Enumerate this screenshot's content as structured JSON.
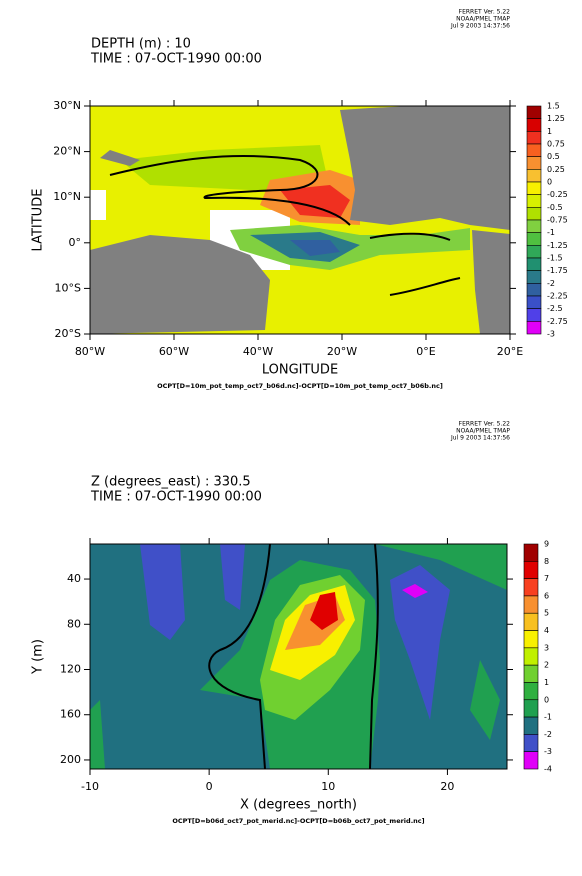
{
  "chart_data": [
    {
      "type": "contour",
      "header": [
        "FERRET Ver. 5.22",
        "NOAA/PMEL TMAP",
        "Jul  9 2003 14:37:56"
      ],
      "title": [
        "DEPTH (m) : 10",
        "TIME : 07-OCT-1990 00:00"
      ],
      "xlabel": "LONGITUDE",
      "ylabel": "LATITUDE",
      "footer": "OCPT[D=10m_pot_temp_oct7_b06d.nc]-OCPT[D=10m_pot_temp_oct7_b06b.nc]",
      "xlim": [
        -80,
        20
      ],
      "xticks": [
        {
          "value": -80,
          "label": "80°W"
        },
        {
          "value": -60,
          "label": "60°W"
        },
        {
          "value": -40,
          "label": "40°W"
        },
        {
          "value": -20,
          "label": "20°W"
        },
        {
          "value": 0,
          "label": "0°E"
        },
        {
          "value": 20,
          "label": "20°E"
        }
      ],
      "ylim": [
        -20,
        30
      ],
      "yticks": [
        {
          "value": -20,
          "label": "20°S"
        },
        {
          "value": -10,
          "label": "10°S"
        },
        {
          "value": 0,
          "label": "0°"
        },
        {
          "value": 10,
          "label": "10°N"
        },
        {
          "value": 20,
          "label": "20°N"
        },
        {
          "value": 30,
          "label": "30°N"
        }
      ],
      "levels": [
        1.5,
        1.25,
        1,
        0.75,
        0.5,
        0.25,
        0,
        -0.25,
        -0.5,
        -0.75,
        -1,
        -1.25,
        -1.5,
        -1.75,
        -2,
        -2.25,
        -2.5,
        -2.75,
        -3
      ],
      "colors": [
        "#a00000",
        "#d80000",
        "#f03020",
        "#f86020",
        "#f89030",
        "#f8c030",
        "#f8f000",
        "#d8f000",
        "#b0e000",
        "#80d040",
        "#50c040",
        "#30a858",
        "#209070",
        "#2a7a8a",
        "#3060a0",
        "#3a50c8",
        "#5040e8",
        "#e000f8"
      ]
    },
    {
      "type": "contour",
      "header": [
        "FERRET Ver. 5.22",
        "NOAA/PMEL TMAP",
        "Jul  9 2003 14:37:56"
      ],
      "title": [
        "Z (degrees_east) : 330.5",
        "TIME : 07-OCT-1990 00:00"
      ],
      "xlabel": "X (degrees_north)",
      "ylabel": "Y (m)",
      "footer": "OCPT[D=b06d_oct7_pot_merid.nc]-OCPT[D=b06b_oct7_pot_merid.nc]",
      "xlim": [
        -10,
        25
      ],
      "xticks": [
        -10,
        0,
        10,
        20
      ],
      "ylim": [
        208,
        9
      ],
      "yticks": [
        40,
        80,
        120,
        160,
        200
      ],
      "levels": [
        9,
        8,
        7,
        6,
        5,
        4,
        3,
        2,
        1,
        0,
        -1,
        -2,
        -3,
        -4
      ],
      "colors": [
        "#a00000",
        "#e00000",
        "#f84020",
        "#f89030",
        "#f8c020",
        "#f8f000",
        "#c0f000",
        "#70d030",
        "#30b040",
        "#20a050",
        "#207080",
        "#4050c8",
        "#e000f8"
      ]
    }
  ]
}
